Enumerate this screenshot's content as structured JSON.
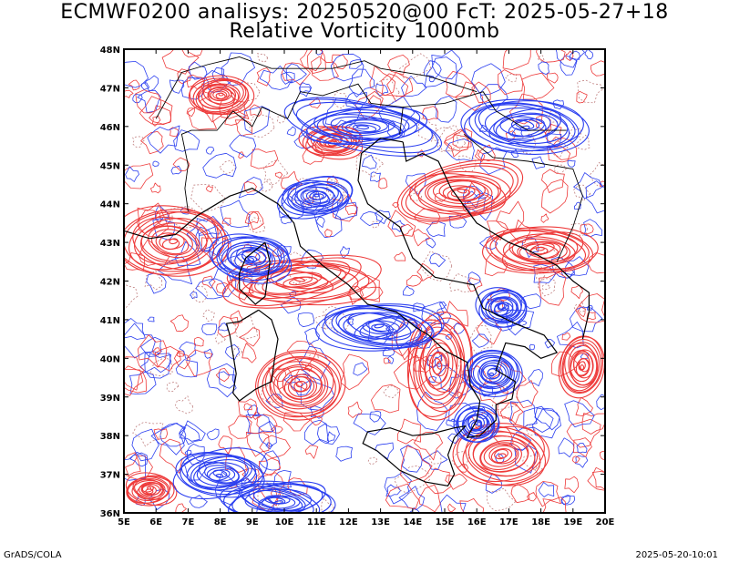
{
  "title_line1": "ECMWF0200 analisys: 20250520@00 FcT: 2025-05-27+18",
  "title_line2": "Relative Vorticity 1000mb",
  "footer_left": "GrADS/COLA",
  "footer_right": "2025-05-20-10:01",
  "colors": {
    "positive_contour": "#ee3b3b",
    "negative_contour": "#2b3ff0",
    "zero_contour": "#c08080",
    "coastline": "#000000",
    "frame": "#000000"
  },
  "map": {
    "lon_range": [
      5,
      20
    ],
    "lat_range": [
      36,
      48
    ],
    "lon_ticks": [
      "5E",
      "6E",
      "7E",
      "8E",
      "9E",
      "10E",
      "11E",
      "12E",
      "13E",
      "14E",
      "15E",
      "16E",
      "17E",
      "18E",
      "19E",
      "20E"
    ],
    "lat_ticks": [
      "36N",
      "37N",
      "38N",
      "39N",
      "40N",
      "41N",
      "42N",
      "43N",
      "44N",
      "45N",
      "46N",
      "47N",
      "48N"
    ],
    "positive_features": [
      {
        "lon": 6.5,
        "lat": 43.0,
        "rx": 1.8,
        "ry": 0.9
      },
      {
        "lon": 10.5,
        "lat": 42.0,
        "rx": 2.5,
        "ry": 0.6
      },
      {
        "lon": 10.5,
        "lat": 39.3,
        "rx": 1.4,
        "ry": 0.9
      },
      {
        "lon": 14.8,
        "lat": 39.8,
        "rx": 1.0,
        "ry": 1.4
      },
      {
        "lon": 16.8,
        "lat": 37.5,
        "rx": 1.5,
        "ry": 0.8
      },
      {
        "lon": 15.5,
        "lat": 44.3,
        "rx": 2.0,
        "ry": 0.7
      },
      {
        "lon": 18.0,
        "lat": 42.8,
        "rx": 1.8,
        "ry": 0.6
      },
      {
        "lon": 11.5,
        "lat": 45.6,
        "rx": 1.0,
        "ry": 0.4
      },
      {
        "lon": 5.8,
        "lat": 36.6,
        "rx": 0.8,
        "ry": 0.4
      },
      {
        "lon": 19.3,
        "lat": 39.8,
        "rx": 0.7,
        "ry": 0.8
      },
      {
        "lon": 8.0,
        "lat": 46.8,
        "rx": 1.0,
        "ry": 0.5
      }
    ],
    "negative_features": [
      {
        "lon": 9.0,
        "lat": 42.6,
        "rx": 1.3,
        "ry": 0.6
      },
      {
        "lon": 13.0,
        "lat": 40.8,
        "rx": 2.0,
        "ry": 0.6
      },
      {
        "lon": 16.5,
        "lat": 39.6,
        "rx": 0.9,
        "ry": 0.6
      },
      {
        "lon": 16.0,
        "lat": 38.3,
        "rx": 0.7,
        "ry": 0.5
      },
      {
        "lon": 9.8,
        "lat": 36.3,
        "rx": 1.8,
        "ry": 0.5
      },
      {
        "lon": 16.8,
        "lat": 41.3,
        "rx": 0.8,
        "ry": 0.5
      },
      {
        "lon": 12.5,
        "lat": 46.0,
        "rx": 2.5,
        "ry": 0.6
      },
      {
        "lon": 8.0,
        "lat": 37.0,
        "rx": 1.5,
        "ry": 0.6
      },
      {
        "lon": 17.5,
        "lat": 46.0,
        "rx": 2.0,
        "ry": 0.7
      },
      {
        "lon": 11.0,
        "lat": 44.2,
        "rx": 1.2,
        "ry": 0.5
      }
    ],
    "coastlines": [
      [
        [
          7.5,
          43.8
        ],
        [
          8.3,
          44.2
        ],
        [
          9.0,
          44.4
        ],
        [
          9.8,
          44.0
        ],
        [
          10.3,
          43.5
        ],
        [
          10.5,
          42.9
        ],
        [
          11.2,
          42.4
        ],
        [
          12.0,
          41.9
        ],
        [
          12.6,
          41.4
        ],
        [
          13.5,
          41.2
        ],
        [
          14.1,
          40.8
        ],
        [
          14.5,
          40.6
        ],
        [
          15.0,
          40.2
        ],
        [
          15.7,
          39.9
        ],
        [
          15.8,
          39.3
        ],
        [
          16.1,
          38.9
        ],
        [
          16.0,
          38.4
        ],
        [
          15.7,
          37.95
        ],
        [
          16.1,
          38.0
        ],
        [
          16.6,
          38.4
        ],
        [
          16.6,
          38.8
        ],
        [
          17.1,
          38.95
        ],
        [
          17.2,
          39.4
        ],
        [
          16.6,
          39.7
        ],
        [
          16.9,
          40.4
        ],
        [
          17.5,
          40.3
        ],
        [
          18.0,
          40.0
        ],
        [
          18.5,
          40.15
        ],
        [
          18.1,
          40.6
        ],
        [
          17.2,
          40.9
        ],
        [
          16.2,
          41.3
        ],
        [
          15.9,
          41.9
        ],
        [
          14.7,
          42.1
        ],
        [
          14.0,
          42.6
        ],
        [
          13.6,
          43.4
        ],
        [
          12.6,
          44.0
        ],
        [
          12.3,
          44.6
        ],
        [
          12.4,
          45.3
        ],
        [
          13.0,
          45.7
        ],
        [
          13.7,
          45.6
        ]
      ],
      [
        [
          15.65,
          38.25
        ],
        [
          15.3,
          37.95
        ],
        [
          15.1,
          37.5
        ],
        [
          15.3,
          37.0
        ],
        [
          15.1,
          36.7
        ],
        [
          14.4,
          36.8
        ],
        [
          13.6,
          37.1
        ],
        [
          12.9,
          37.6
        ],
        [
          12.45,
          37.8
        ],
        [
          12.6,
          38.1
        ],
        [
          13.3,
          38.2
        ],
        [
          14.0,
          38.0
        ],
        [
          14.6,
          38.05
        ],
        [
          15.3,
          38.2
        ],
        [
          15.65,
          38.25
        ]
      ],
      [
        [
          9.2,
          41.25
        ],
        [
          9.6,
          41.0
        ],
        [
          9.8,
          40.5
        ],
        [
          9.7,
          40.0
        ],
        [
          9.6,
          39.4
        ],
        [
          9.1,
          39.2
        ],
        [
          8.6,
          38.9
        ],
        [
          8.4,
          39.1
        ],
        [
          8.5,
          39.6
        ],
        [
          8.4,
          40.1
        ],
        [
          8.3,
          40.6
        ],
        [
          8.2,
          40.9
        ],
        [
          8.6,
          40.95
        ],
        [
          9.2,
          41.25
        ]
      ],
      [
        [
          9.4,
          43.0
        ],
        [
          9.55,
          42.5
        ],
        [
          9.4,
          41.6
        ],
        [
          9.1,
          41.4
        ],
        [
          8.6,
          41.8
        ],
        [
          8.6,
          42.2
        ],
        [
          8.8,
          42.6
        ],
        [
          9.4,
          43.0
        ]
      ],
      [
        [
          5.0,
          43.3
        ],
        [
          5.8,
          43.1
        ],
        [
          6.6,
          43.2
        ],
        [
          7.3,
          43.7
        ],
        [
          7.5,
          43.8
        ]
      ],
      [
        [
          13.7,
          45.6
        ],
        [
          13.8,
          45.1
        ],
        [
          14.3,
          45.3
        ],
        [
          14.8,
          45.1
        ],
        [
          15.2,
          44.4
        ],
        [
          16.0,
          43.5
        ],
        [
          17.0,
          43.0
        ],
        [
          17.6,
          42.8
        ],
        [
          18.5,
          42.4
        ],
        [
          19.0,
          42.0
        ],
        [
          19.5,
          41.7
        ],
        [
          19.5,
          41.2
        ],
        [
          19.3,
          40.5
        ]
      ]
    ],
    "borders": [
      [
        [
          7.0,
          43.8
        ],
        [
          6.9,
          44.4
        ],
        [
          7.0,
          45.0
        ],
        [
          6.8,
          45.8
        ],
        [
          7.1,
          45.9
        ],
        [
          7.9,
          45.9
        ],
        [
          8.4,
          46.4
        ],
        [
          9.0,
          46.0
        ],
        [
          9.3,
          46.5
        ],
        [
          10.1,
          46.2
        ],
        [
          10.5,
          46.9
        ],
        [
          11.2,
          46.8
        ],
        [
          12.3,
          47.1
        ],
        [
          12.7,
          46.6
        ],
        [
          13.7,
          46.5
        ],
        [
          13.6,
          45.8
        ]
      ],
      [
        [
          6.0,
          46.2
        ],
        [
          6.8,
          47.4
        ],
        [
          7.6,
          47.6
        ],
        [
          8.6,
          47.8
        ],
        [
          9.6,
          47.5
        ]
      ],
      [
        [
          9.6,
          47.5
        ],
        [
          10.5,
          47.5
        ],
        [
          11.5,
          47.5
        ],
        [
          12.5,
          47.7
        ],
        [
          13.0,
          47.5
        ],
        [
          14.5,
          47.3
        ],
        [
          16.0,
          46.9
        ]
      ],
      [
        [
          13.7,
          46.5
        ],
        [
          15.0,
          46.6
        ],
        [
          16.2,
          46.9
        ],
        [
          16.6,
          46.4
        ],
        [
          17.6,
          45.9
        ],
        [
          18.8,
          45.9
        ]
      ],
      [
        [
          15.6,
          45.8
        ],
        [
          16.5,
          45.2
        ],
        [
          17.6,
          45.1
        ],
        [
          19.0,
          44.9
        ],
        [
          19.3,
          44.2
        ],
        [
          19.0,
          43.4
        ],
        [
          18.5,
          42.5
        ]
      ]
    ]
  }
}
